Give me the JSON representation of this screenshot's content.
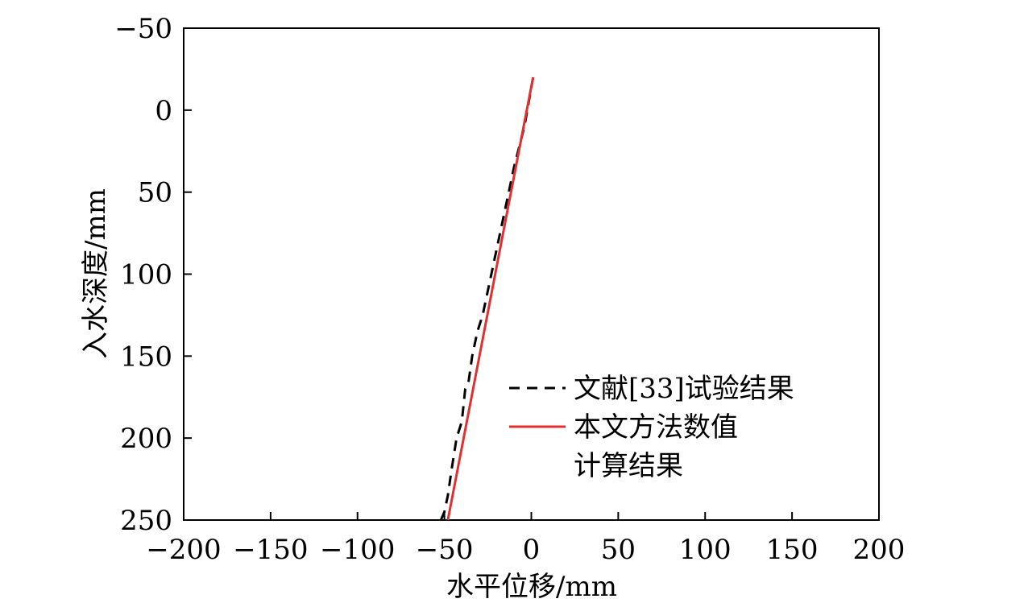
{
  "chart_data": {
    "type": "line",
    "xlabel": "水平位移/mm",
    "ylabel": "入水深度/mm",
    "xlim": [
      -200,
      200
    ],
    "ylim": [
      -50,
      250
    ],
    "y_inverted": true,
    "x_ticks": [
      -200,
      -150,
      -100,
      -50,
      0,
      50,
      100,
      150,
      200
    ],
    "y_ticks": [
      -50,
      0,
      50,
      100,
      150,
      200,
      250
    ],
    "x_tick_labels": [
      "−200",
      "−150",
      "−100",
      "−50",
      "0",
      "50",
      "100",
      "150",
      "200"
    ],
    "y_tick_labels": [
      "−50",
      "0",
      "50",
      "100",
      "150",
      "200",
      "250"
    ],
    "grid": false,
    "legend_position": "bottom-right",
    "series": [
      {
        "name": "文献[33]试验结果",
        "color": "#000000",
        "style": "dashed",
        "x": [
          1,
          -4,
          -10,
          -13,
          -18,
          -23,
          -28,
          -31,
          -34,
          -36,
          -38,
          -40,
          -43,
          -46,
          -48,
          -50,
          -52
        ],
        "y": [
          -20,
          10,
          35,
          50,
          75,
          100,
          125,
          135,
          150,
          165,
          170,
          190,
          200,
          220,
          235,
          245,
          250
        ]
      },
      {
        "name": "本文方法数值\n计算结果",
        "legend_lines": [
          "本文方法数值",
          "计算结果"
        ],
        "color": "#e03030",
        "style": "solid",
        "x": [
          1,
          -48
        ],
        "y": [
          -20,
          250
        ]
      }
    ]
  }
}
